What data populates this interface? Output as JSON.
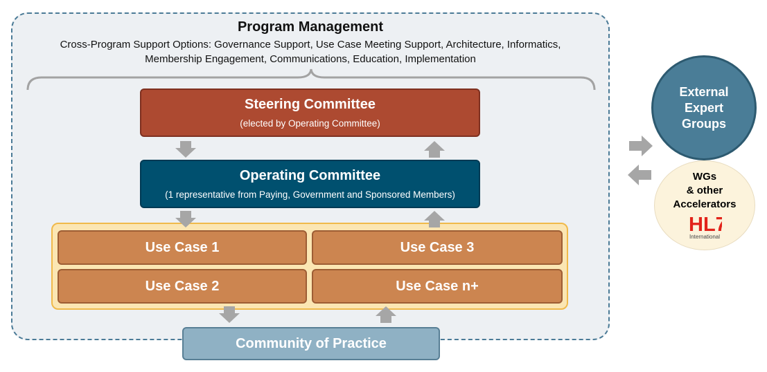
{
  "program_management": {
    "title": "Program Management",
    "subtitle_line1": "Cross-Program Support Options: Governance Support, Use Case Meeting Support, Architecture, Informatics,",
    "subtitle_line2": "Membership Engagement, Communications, Education, Implementation"
  },
  "steering": {
    "title": "Steering Committee",
    "subtitle": "(elected by Operating Committee)"
  },
  "operating": {
    "title": "Operating Committee",
    "subtitle": "(1 representative from Paying, Government and Sponsored Members)"
  },
  "use_cases": [
    "Use Case 1",
    "Use Case 3",
    "Use Case 2",
    "Use Case n+"
  ],
  "community": {
    "label": "Community of Practice"
  },
  "external": {
    "line1": "External",
    "line2": "Expert",
    "line3": "Groups"
  },
  "wgs": {
    "line1": "WGs",
    "line2": "& other",
    "line3": "Accelerators",
    "logo_text": "HL7",
    "logo_sub": "International"
  },
  "colors": {
    "steering": "#ad4a31",
    "operating": "#00506f",
    "use_case": "#cc8550",
    "community": "#8fb1c4",
    "external": "#4a7d97",
    "arrow": "#a6a6a6",
    "hl7_red": "#e2231a"
  }
}
